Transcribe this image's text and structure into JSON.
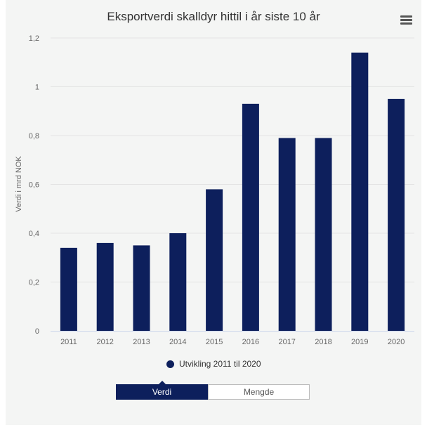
{
  "colors": {
    "bar": "#0d1f5c",
    "grid": "#e3e3e3",
    "axis": "#ccd6eb"
  },
  "chart_data": {
    "type": "bar",
    "title": "Eksportverdi skalldyr hittil i år siste 10 år",
    "xlabel": "",
    "ylabel": "Verdi i mrd NOK",
    "categories": [
      "2011",
      "2012",
      "2013",
      "2014",
      "2015",
      "2016",
      "2017",
      "2018",
      "2019",
      "2020"
    ],
    "series": [
      {
        "name": "Utvikling 2011 til 2020",
        "values": [
          0.34,
          0.36,
          0.35,
          0.4,
          0.58,
          0.93,
          0.79,
          0.79,
          1.14,
          0.95
        ]
      }
    ],
    "ylim": [
      0,
      1.2
    ],
    "yticks": [
      0,
      0.2,
      0.4,
      0.6,
      0.8,
      1.0,
      1.2
    ],
    "ytick_labels": [
      "0",
      "0,2",
      "0,4",
      "0,6",
      "0,8",
      "1",
      "1,2"
    ],
    "grid": true,
    "legend": "bottom-center"
  },
  "menu": {
    "icon": "hamburger-icon"
  },
  "toggle": {
    "active_label": "Verdi",
    "inactive_label": "Mengde"
  }
}
